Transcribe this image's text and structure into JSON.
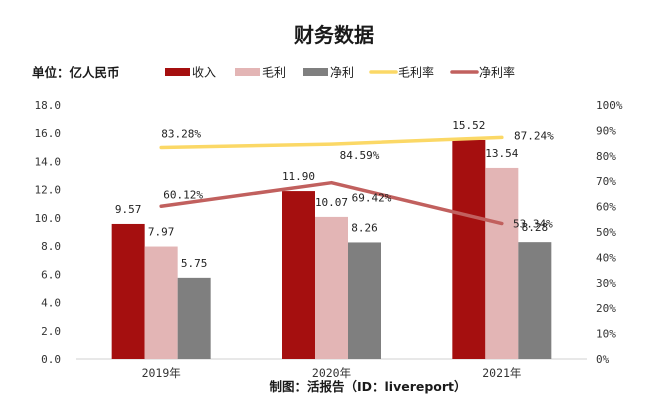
{
  "chart_data": {
    "type": "bar",
    "title": "财务数据",
    "unit_label": "单位：亿人民币",
    "credit": "制图：活报告（ID：livereport）",
    "categories": [
      "2019年",
      "2020年",
      "2021年"
    ],
    "y_left": {
      "range": [
        0,
        18
      ],
      "step": 2,
      "tick_labels": [
        "0.0",
        "2.0",
        "4.0",
        "6.0",
        "8.0",
        "10.0",
        "12.0",
        "14.0",
        "16.0",
        "18.0"
      ]
    },
    "y_right": {
      "range": [
        0,
        100
      ],
      "step": 10,
      "tick_labels": [
        "0%",
        "10%",
        "20%",
        "30%",
        "40%",
        "50%",
        "60%",
        "70%",
        "80%",
        "90%",
        "100%"
      ]
    },
    "bar_series": [
      {
        "name": "收入",
        "color": "#a50f0f",
        "values": [
          9.57,
          11.9,
          15.52
        ],
        "labels": [
          "9.57",
          "11.90",
          "15.52"
        ]
      },
      {
        "name": "毛利",
        "color": "#e3b5b5",
        "values": [
          7.97,
          10.07,
          13.54
        ],
        "labels": [
          "7.97",
          "10.07",
          "13.54"
        ]
      },
      {
        "name": "净利",
        "color": "#7f7f7f",
        "values": [
          5.75,
          8.26,
          8.28
        ],
        "labels": [
          "5.75",
          "8.26",
          "8.28"
        ]
      }
    ],
    "line_series": [
      {
        "name": "毛利率",
        "color": "#fbd866",
        "values": [
          83.28,
          84.59,
          87.24
        ],
        "labels": [
          "83.28%",
          "84.59%",
          "87.24%"
        ]
      },
      {
        "name": "净利率",
        "color": "#c1605e",
        "values": [
          60.12,
          69.42,
          53.34
        ],
        "labels": [
          "60.12%",
          "69.42%",
          "53.34%"
        ]
      }
    ],
    "grid": false,
    "legend_position": "top"
  }
}
